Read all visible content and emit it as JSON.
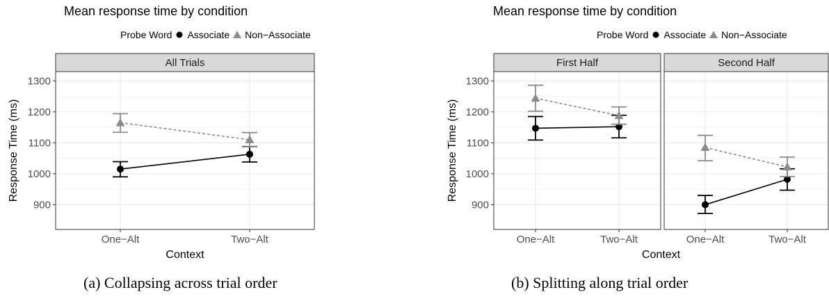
{
  "chart_data": [
    {
      "type": "line",
      "title": "Mean response time by condition",
      "xlabel": "Context",
      "ylabel": "Response Time (ms)",
      "ylim": [
        820,
        1330
      ],
      "yticks": [
        900,
        1000,
        1100,
        1200,
        1300
      ],
      "categories": [
        "One−Alt",
        "Two−Alt"
      ],
      "legend_title": "Probe Word",
      "legend_position": "top-right",
      "grid": true,
      "caption": "(a) Collapsing across trial order",
      "panels": [
        {
          "strip": "All Trials",
          "series": [
            {
              "name": "Associate",
              "color": "#000000",
              "marker": "circle",
              "dash": "solid",
              "values": [
                1015,
                1063
              ],
              "lower": [
                990,
                1038
              ],
              "upper": [
                1039,
                1088
              ]
            },
            {
              "name": "Non−Associate",
              "color": "#8c8c8c",
              "marker": "triangle",
              "dash": "dashed",
              "values": [
                1165,
                1110
              ],
              "lower": [
                1134,
                1087
              ],
              "upper": [
                1194,
                1133
              ]
            }
          ]
        }
      ]
    },
    {
      "type": "line",
      "title": "Mean response time by condition",
      "xlabel": "Context",
      "ylabel": "Response Time (ms)",
      "ylim": [
        820,
        1330
      ],
      "yticks": [
        900,
        1000,
        1100,
        1200,
        1300
      ],
      "categories": [
        "One−Alt",
        "Two−Alt"
      ],
      "legend_title": "Probe Word",
      "legend_position": "top-right",
      "grid": true,
      "caption": "(b) Splitting along trial order",
      "panels": [
        {
          "strip": "First Half",
          "series": [
            {
              "name": "Associate",
              "color": "#000000",
              "marker": "circle",
              "dash": "solid",
              "values": [
                1147,
                1152
              ],
              "lower": [
                1109,
                1116
              ],
              "upper": [
                1185,
                1189
              ]
            },
            {
              "name": "Non−Associate",
              "color": "#8c8c8c",
              "marker": "triangle",
              "dash": "dashed",
              "values": [
                1244,
                1188
              ],
              "lower": [
                1202,
                1160
              ],
              "upper": [
                1286,
                1216
              ]
            }
          ]
        },
        {
          "strip": "Second Half",
          "series": [
            {
              "name": "Associate",
              "color": "#000000",
              "marker": "circle",
              "dash": "solid",
              "values": [
                900,
                982
              ],
              "lower": [
                872,
                947
              ],
              "upper": [
                930,
                1016
              ]
            },
            {
              "name": "Non−Associate",
              "color": "#8c8c8c",
              "marker": "triangle",
              "dash": "dashed",
              "values": [
                1085,
                1022
              ],
              "lower": [
                1042,
                991
              ],
              "upper": [
                1124,
                1054
              ]
            }
          ]
        }
      ]
    }
  ],
  "colors": {
    "strip_fill": "#d9d9d9",
    "grid": "#ebebeb",
    "associate": "#000000",
    "non_associate": "#8c8c8c"
  }
}
